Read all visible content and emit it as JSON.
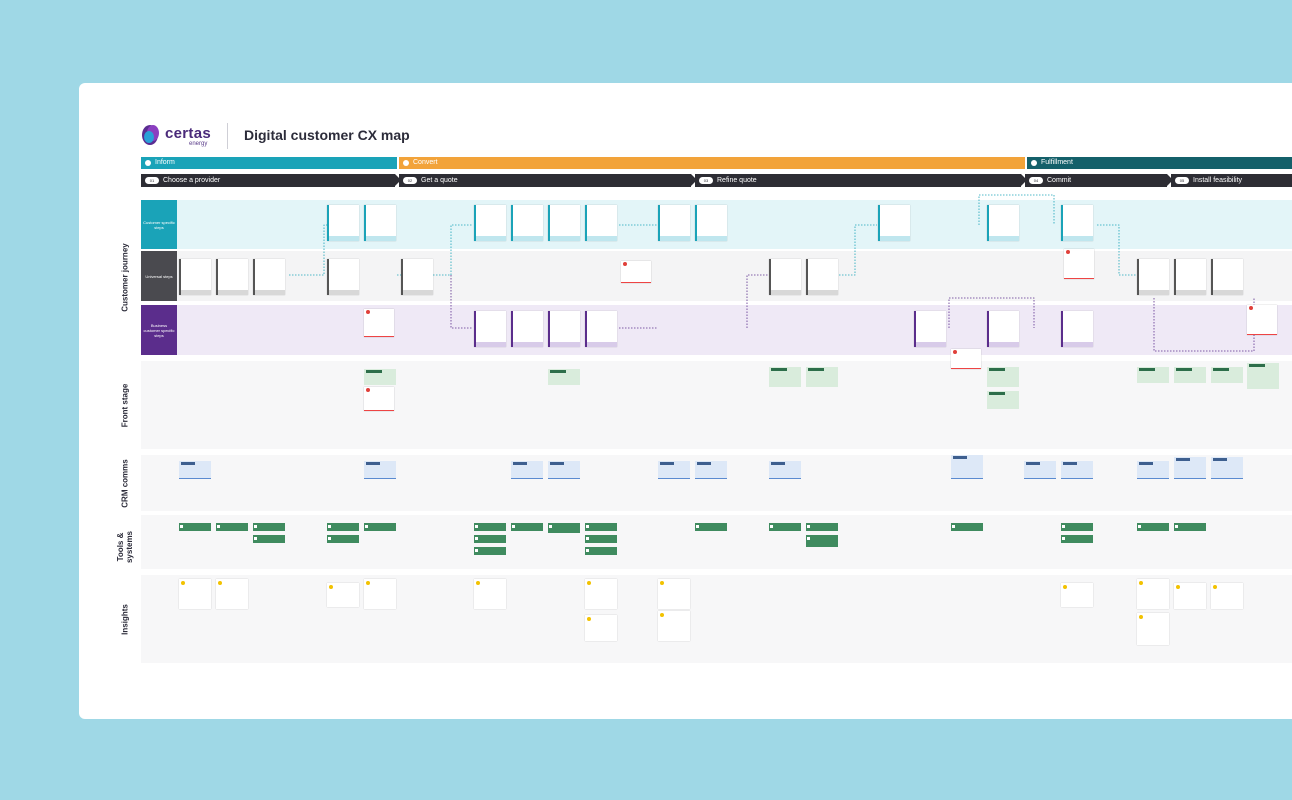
{
  "title": "Digital customer CX map",
  "logo": {
    "name": "certas",
    "sub": "energy"
  },
  "phases": [
    {
      "label": "Inform",
      "color": "#1aa3b8"
    },
    {
      "label": "Convert",
      "color": "#f2a33a"
    },
    {
      "label": "Fulfillment",
      "color": "#14606a"
    }
  ],
  "steps": [
    {
      "num": "01",
      "label": "Choose a provider"
    },
    {
      "num": "02",
      "label": "Get a quote"
    },
    {
      "num": "03",
      "label": "Refine quote"
    },
    {
      "num": "04",
      "label": "Commit"
    },
    {
      "num": "05",
      "label": "Install feasibility"
    }
  ],
  "side_labels": {
    "journey": "Customer journey",
    "front": "Front stage",
    "crm": "CRM comms",
    "tools": "Tools & systems",
    "insights": "Insights"
  },
  "lane_labels": {
    "customer": "Customer specific steps",
    "universal": "Universal steps",
    "business": "Business customer specific steps"
  },
  "colors": {
    "teal": "#1aa3b8",
    "dark": "#4a4a4f",
    "purple": "#5b2d8c",
    "orange": "#f2a33a",
    "dark_teal": "#14606a"
  }
}
